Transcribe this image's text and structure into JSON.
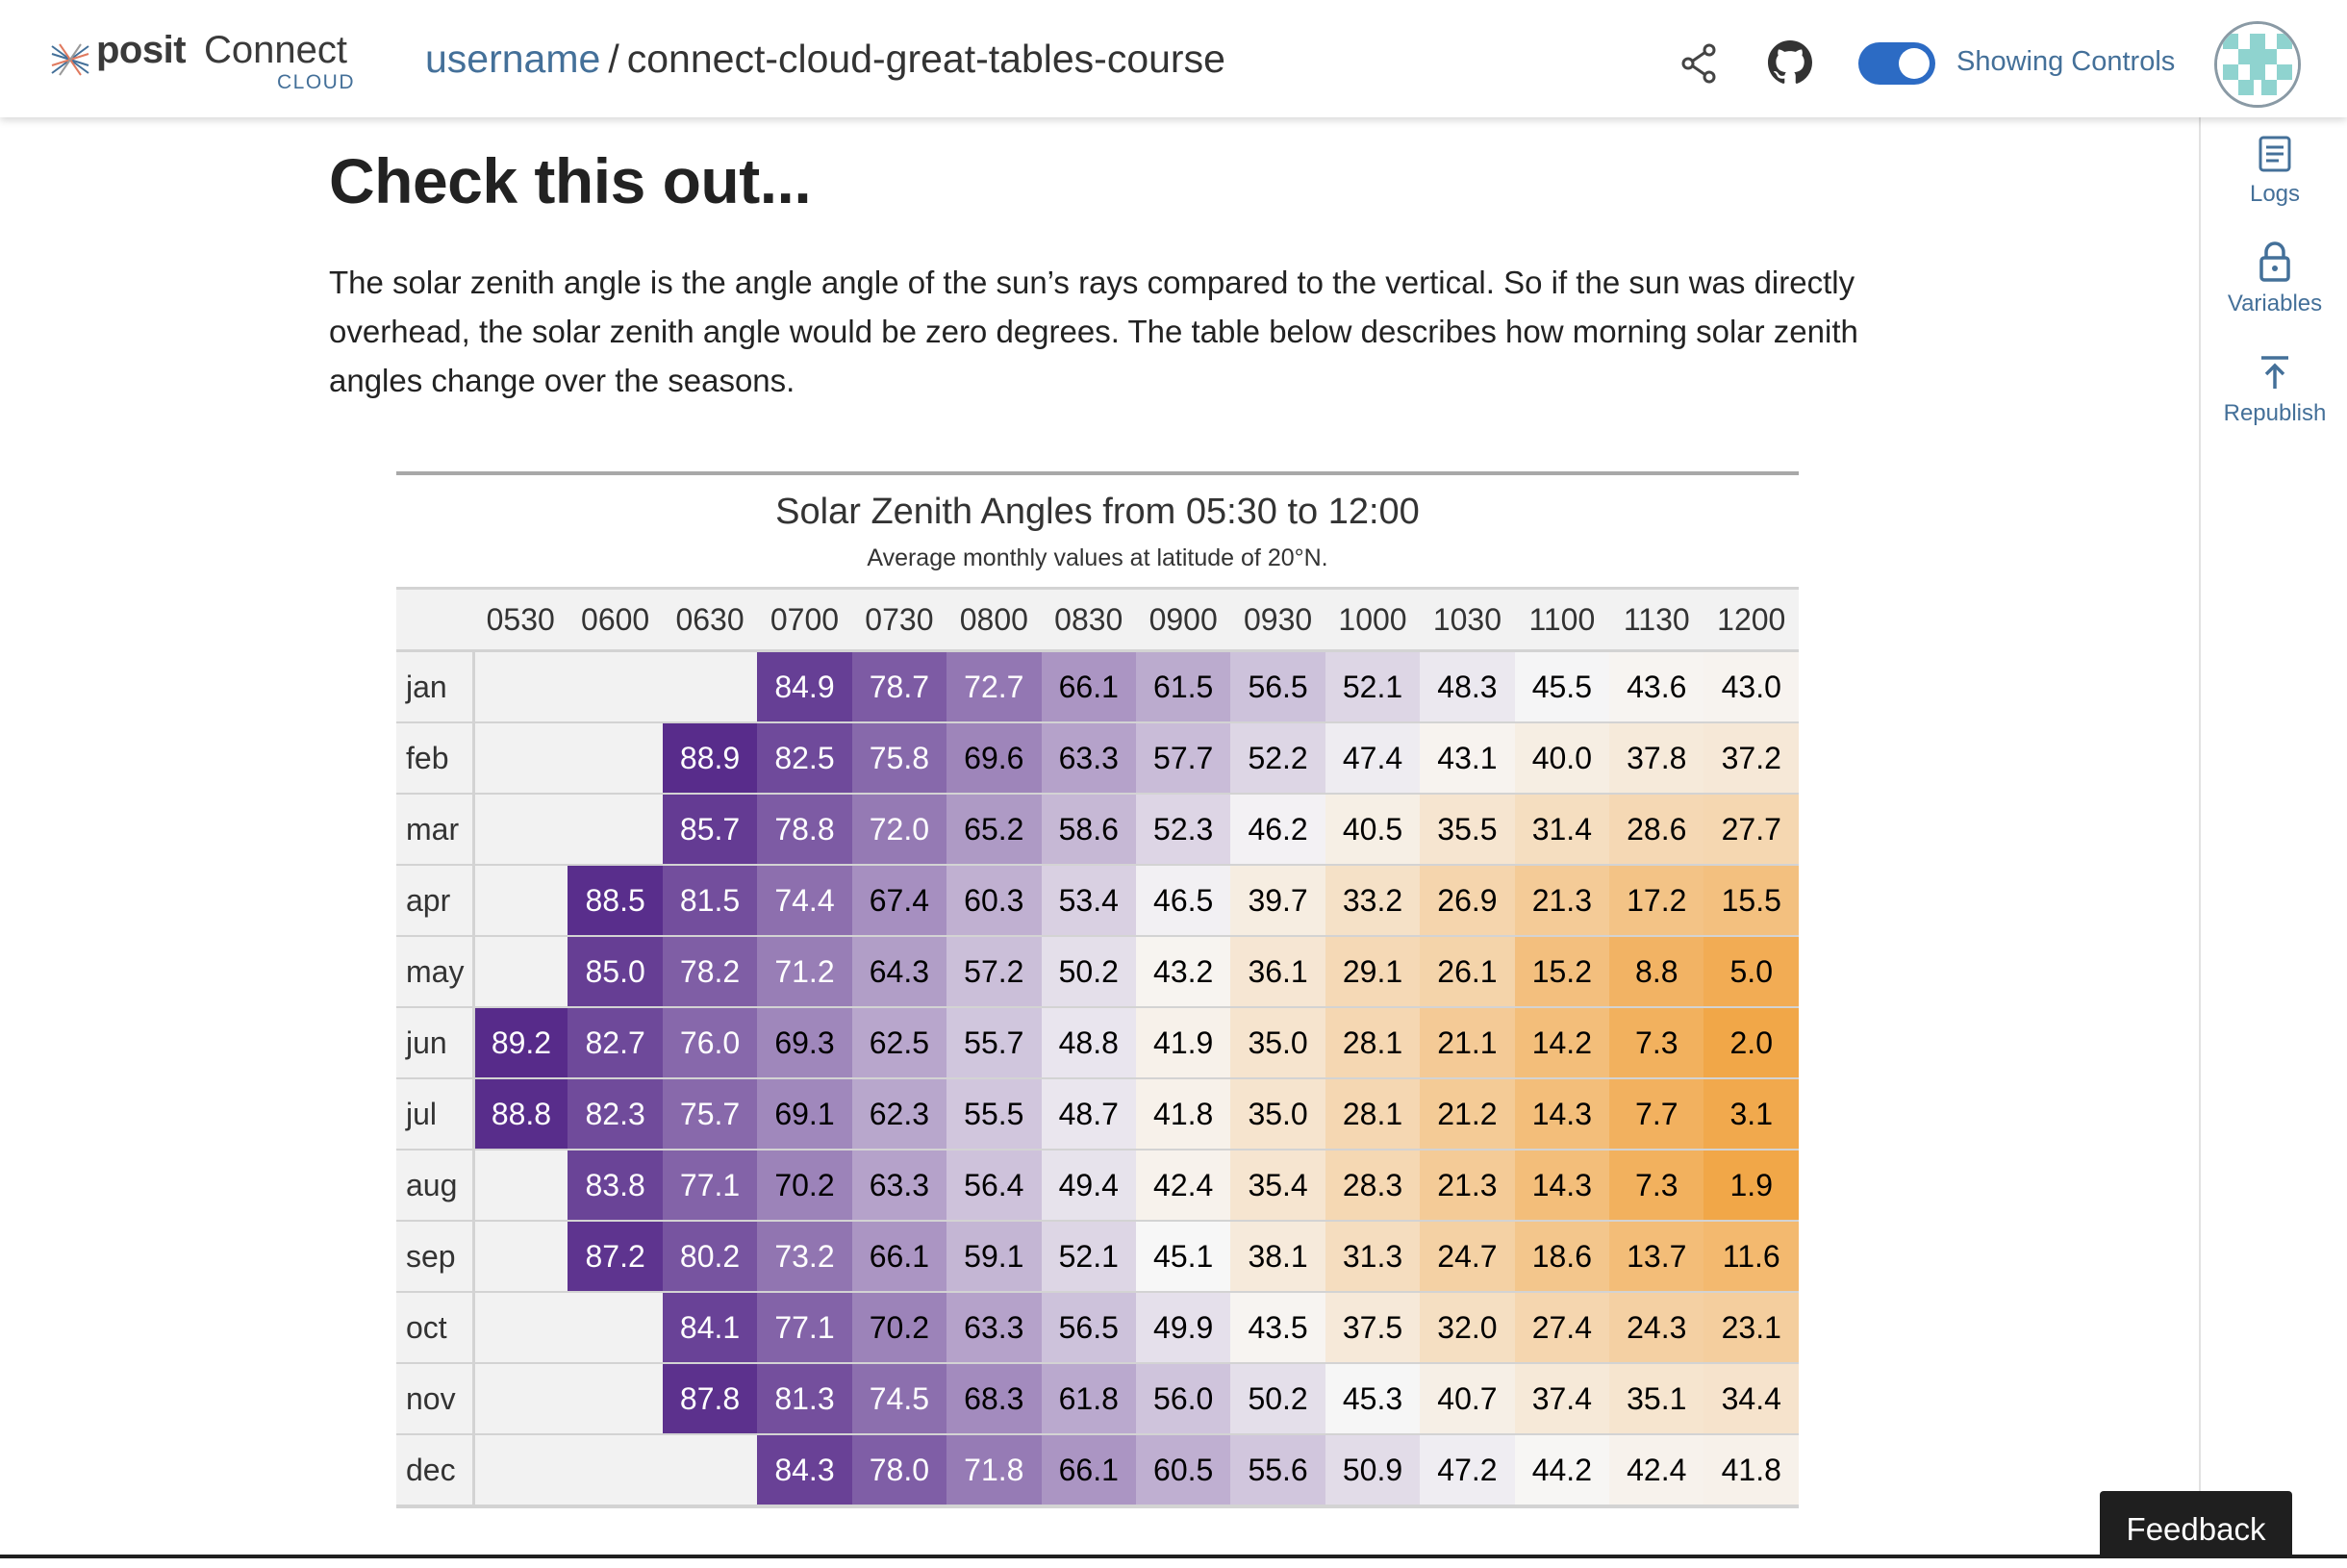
{
  "header": {
    "logo_posit": "posit",
    "logo_connect": "Connect",
    "logo_cloud": "CLOUD",
    "username": "username",
    "separator": "/",
    "repo": "connect-cloud-great-tables-course",
    "share_icon": "share-icon",
    "github_icon": "github-icon",
    "toggle_on": true,
    "toggle_label": "Showing Controls",
    "avatar": "avatar"
  },
  "sidebar": {
    "items": [
      {
        "label": "Logs",
        "icon": "logs-icon"
      },
      {
        "label": "Variables",
        "icon": "lock-icon"
      },
      {
        "label": "Republish",
        "icon": "upload-icon"
      }
    ]
  },
  "content": {
    "heading": "Check this out...",
    "intro": "The solar zenith angle is the angle angle of the sun’s rays compared to the vertical. So if the sun was directly overhead, the solar zenith angle would be zero degrees. The table below describes how morning solar zenith angles change over the seasons."
  },
  "table": {
    "title": "Solar Zenith Angles from 05:30 to 12:00",
    "subtitle": "Average monthly values at latitude of 20°N.",
    "columns": [
      "0530",
      "0600",
      "0630",
      "0700",
      "0730",
      "0800",
      "0830",
      "0900",
      "0930",
      "1000",
      "1030",
      "1100",
      "1130",
      "1200"
    ],
    "rows": [
      {
        "month": "jan",
        "values": [
          null,
          null,
          null,
          "84.9",
          "78.7",
          "72.7",
          "66.1",
          "61.5",
          "56.5",
          "52.1",
          "48.3",
          "45.5",
          "43.6",
          "43.0"
        ]
      },
      {
        "month": "feb",
        "values": [
          null,
          null,
          "88.9",
          "82.5",
          "75.8",
          "69.6",
          "63.3",
          "57.7",
          "52.2",
          "47.4",
          "43.1",
          "40.0",
          "37.8",
          "37.2"
        ]
      },
      {
        "month": "mar",
        "values": [
          null,
          null,
          "85.7",
          "78.8",
          "72.0",
          "65.2",
          "58.6",
          "52.3",
          "46.2",
          "40.5",
          "35.5",
          "31.4",
          "28.6",
          "27.7"
        ]
      },
      {
        "month": "apr",
        "values": [
          null,
          "88.5",
          "81.5",
          "74.4",
          "67.4",
          "60.3",
          "53.4",
          "46.5",
          "39.7",
          "33.2",
          "26.9",
          "21.3",
          "17.2",
          "15.5"
        ]
      },
      {
        "month": "may",
        "values": [
          null,
          "85.0",
          "78.2",
          "71.2",
          "64.3",
          "57.2",
          "50.2",
          "43.2",
          "36.1",
          "29.1",
          "26.1",
          "15.2",
          "8.8",
          "5.0"
        ]
      },
      {
        "month": "jun",
        "values": [
          "89.2",
          "82.7",
          "76.0",
          "69.3",
          "62.5",
          "55.7",
          "48.8",
          "41.9",
          "35.0",
          "28.1",
          "21.1",
          "14.2",
          "7.3",
          "2.0"
        ]
      },
      {
        "month": "jul",
        "values": [
          "88.8",
          "82.3",
          "75.7",
          "69.1",
          "62.3",
          "55.5",
          "48.7",
          "41.8",
          "35.0",
          "28.1",
          "21.2",
          "14.3",
          "7.7",
          "3.1"
        ]
      },
      {
        "month": "aug",
        "values": [
          null,
          "83.8",
          "77.1",
          "70.2",
          "63.3",
          "56.4",
          "49.4",
          "42.4",
          "35.4",
          "28.3",
          "21.3",
          "14.3",
          "7.3",
          "1.9"
        ]
      },
      {
        "month": "sep",
        "values": [
          null,
          "87.2",
          "80.2",
          "73.2",
          "66.1",
          "59.1",
          "52.1",
          "45.1",
          "38.1",
          "31.3",
          "24.7",
          "18.6",
          "13.7",
          "11.6"
        ]
      },
      {
        "month": "oct",
        "values": [
          null,
          null,
          "84.1",
          "77.1",
          "70.2",
          "63.3",
          "56.5",
          "49.9",
          "43.5",
          "37.5",
          "32.0",
          "27.4",
          "24.3",
          "23.1"
        ]
      },
      {
        "month": "nov",
        "values": [
          null,
          null,
          "87.8",
          "81.3",
          "74.5",
          "68.3",
          "61.8",
          "56.0",
          "50.2",
          "45.3",
          "40.7",
          "37.4",
          "35.1",
          "34.4"
        ]
      },
      {
        "month": "dec",
        "values": [
          null,
          null,
          null,
          "84.3",
          "78.0",
          "71.8",
          "66.1",
          "60.5",
          "55.6",
          "50.9",
          "47.2",
          "44.2",
          "42.4",
          "41.8"
        ]
      }
    ]
  },
  "feedback": {
    "label": "Feedback"
  },
  "colors": {
    "accent": "#447099",
    "toggle": "#2c6bc4",
    "scale_low": "#f1a340",
    "scale_mid": "#f7f7f7",
    "scale_high": "#542788"
  }
}
